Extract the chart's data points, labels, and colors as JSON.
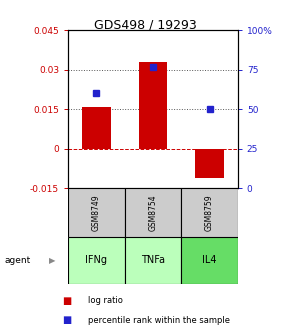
{
  "title": "GDS498 / 19293",
  "samples": [
    "GSM8749",
    "GSM8754",
    "GSM8759"
  ],
  "agents": [
    "IFNg",
    "TNFa",
    "IL4"
  ],
  "log_ratios": [
    0.016,
    0.033,
    -0.011
  ],
  "percentile_ranks": [
    0.6,
    0.77,
    0.5
  ],
  "ylim_left": [
    -0.015,
    0.045
  ],
  "ylim_right": [
    0.0,
    1.0
  ],
  "yticks_left": [
    -0.015,
    0.0,
    0.015,
    0.03,
    0.045
  ],
  "ytick_labels_left": [
    "-0.015",
    "0",
    "0.015",
    "0.03",
    "0.045"
  ],
  "yticks_right": [
    0.0,
    0.25,
    0.5,
    0.75,
    1.0
  ],
  "ytick_labels_right": [
    "0",
    "25",
    "50",
    "75",
    "100%"
  ],
  "hlines": [
    0.015,
    0.03
  ],
  "bar_color": "#cc0000",
  "marker_color": "#2222cc",
  "sample_box_color": "#cccccc",
  "agent_colors": [
    "#bbffbb",
    "#bbffbb",
    "#66dd66"
  ],
  "left_axis_color": "#cc0000",
  "right_axis_color": "#2222cc",
  "zero_line_color": "#cc0000",
  "bar_width": 0.5
}
